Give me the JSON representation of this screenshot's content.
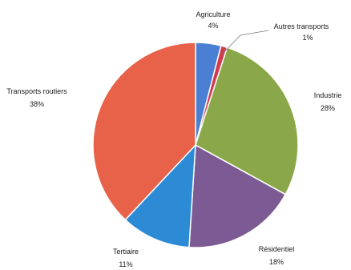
{
  "chart_data": {
    "type": "pie",
    "title": "",
    "legend": "none",
    "slices": [
      {
        "label": "Agriculture",
        "value": 4,
        "value_label": "4%",
        "color": "#4a7fd4"
      },
      {
        "label": "Autres transports",
        "value": 1,
        "value_label": "1%",
        "color": "#d23a4e"
      },
      {
        "label": "Industrie",
        "value": 28,
        "value_label": "28%",
        "color": "#8aa84a"
      },
      {
        "label": "Résidentiel",
        "value": 18,
        "value_label": "18%",
        "color": "#7c5a93"
      },
      {
        "label": "Tertiaire",
        "value": 11,
        "value_label": "11%",
        "color": "#2d8bd6"
      },
      {
        "label": "Transports routiers",
        "value": 38,
        "value_label": "38%",
        "color": "#e8624a"
      }
    ]
  }
}
